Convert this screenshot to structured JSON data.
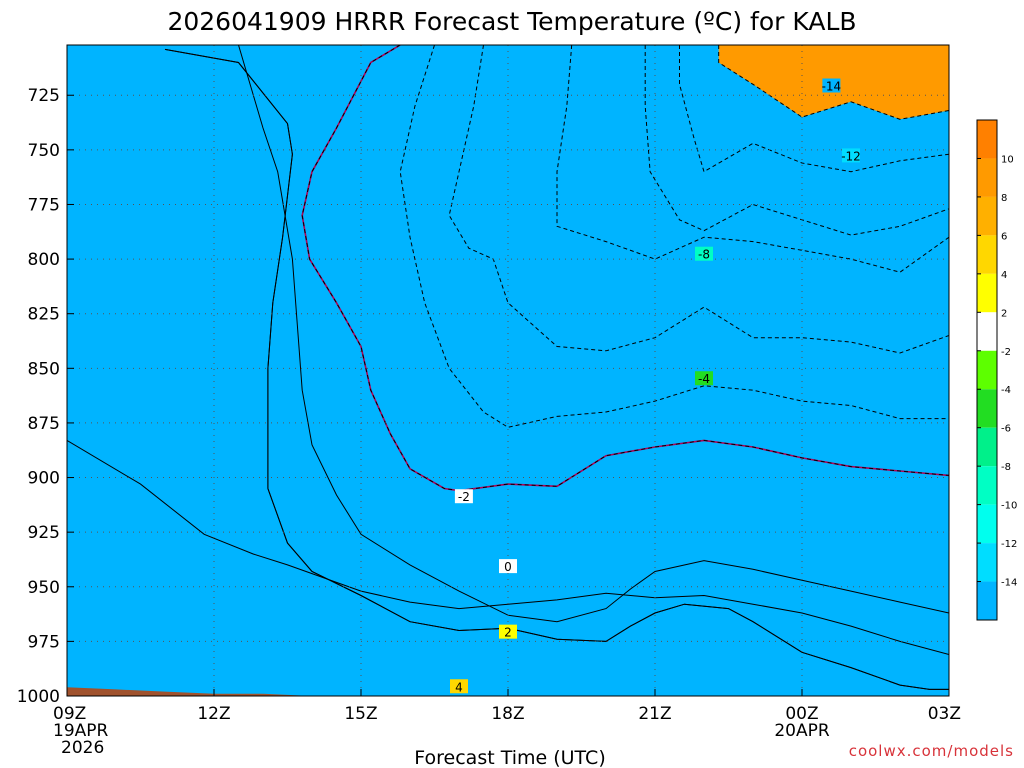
{
  "chart_data": {
    "type": "heatmap",
    "title": "2026041909 HRRR Forecast Temperature (ºC) for KALB",
    "xlabel": "Forecast Time (UTC)",
    "ylabel": "",
    "x_ticks": [
      {
        "hour": 0,
        "label": "09Z",
        "sub1": "19APR",
        "sub2": "2026"
      },
      {
        "hour": 3,
        "label": "12Z",
        "sub1": "",
        "sub2": ""
      },
      {
        "hour": 6,
        "label": "15Z",
        "sub1": "",
        "sub2": ""
      },
      {
        "hour": 9,
        "label": "18Z",
        "sub1": "",
        "sub2": ""
      },
      {
        "hour": 12,
        "label": "21Z",
        "sub1": "",
        "sub2": ""
      },
      {
        "hour": 15,
        "label": "00Z",
        "sub1": "20APR",
        "sub2": ""
      },
      {
        "hour": 18,
        "label": "03Z",
        "sub1": "",
        "sub2": ""
      }
    ],
    "y_ticks": [
      725,
      750,
      775,
      800,
      825,
      850,
      875,
      900,
      925,
      950,
      975,
      1000
    ],
    "xlim": [
      0,
      18
    ],
    "ylim": [
      1000,
      702
    ],
    "grid": true,
    "colorbar": {
      "levels": [
        -14,
        -12,
        -10,
        -8,
        -6,
        -4,
        -2,
        2,
        4,
        6,
        8,
        10
      ],
      "colors": [
        "#00b4ff",
        "#00ddff",
        "#00ffee",
        "#00ffc4",
        "#00f08a",
        "#22dd22",
        "#5dff00",
        "#ffffff",
        "#ffff00",
        "#ffd700",
        "#ffb000",
        "#ff9a00",
        "#ff8000"
      ]
    },
    "fill_bands": [
      {
        "lo": 4,
        "color": "#ffb000",
        "outline": [
          [
            0,
            1000
          ],
          [
            0,
            883
          ],
          [
            1.5,
            903
          ],
          [
            2.8,
            926
          ],
          [
            3.8,
            935
          ],
          [
            4.5,
            940
          ],
          [
            6,
            952
          ],
          [
            7,
            957
          ],
          [
            8,
            960
          ],
          [
            9,
            958
          ],
          [
            10,
            956
          ],
          [
            11,
            953
          ],
          [
            12,
            955
          ],
          [
            13,
            954
          ],
          [
            14,
            958
          ],
          [
            15,
            962
          ],
          [
            16,
            968
          ],
          [
            17,
            975
          ],
          [
            18,
            981
          ],
          [
            18,
            1000
          ]
        ]
      },
      {
        "lo": 4,
        "color": "#ffb000",
        "outline": [
          [
            0,
            1000
          ],
          [
            0,
            702
          ],
          [
            2,
            704
          ],
          [
            3.5,
            710
          ],
          [
            4.5,
            738
          ],
          [
            4.6,
            752
          ],
          [
            4.4,
            790
          ],
          [
            4.2,
            820
          ],
          [
            4.1,
            850
          ],
          [
            4.1,
            880
          ],
          [
            4.1,
            905
          ],
          [
            4.5,
            930
          ],
          [
            5,
            943
          ],
          [
            6,
            954
          ],
          [
            7,
            966
          ],
          [
            8,
            970
          ],
          [
            9,
            969
          ],
          [
            10,
            974
          ],
          [
            11,
            975
          ],
          [
            11.5,
            968
          ],
          [
            12,
            962
          ],
          [
            12.6,
            958
          ],
          [
            13.5,
            960
          ],
          [
            14,
            966
          ],
          [
            15,
            980
          ],
          [
            16,
            987
          ],
          [
            17,
            995
          ],
          [
            17.6,
            997
          ],
          [
            18,
            997
          ],
          [
            18,
            1000
          ]
        ]
      },
      {
        "lo": 2,
        "color": "#ffff00",
        "outline": [
          [
            0,
            1000
          ],
          [
            0,
            702
          ],
          [
            2,
            704
          ],
          [
            3.5,
            710
          ],
          [
            4.5,
            738
          ],
          [
            4.6,
            752
          ],
          [
            4.4,
            790
          ],
          [
            4.2,
            820
          ],
          [
            4.1,
            850
          ],
          [
            4.1,
            880
          ],
          [
            4.1,
            905
          ],
          [
            4.5,
            930
          ],
          [
            5,
            943
          ],
          [
            6,
            954
          ],
          [
            7,
            966
          ],
          [
            8,
            970
          ],
          [
            9,
            969
          ],
          [
            10,
            974
          ],
          [
            11,
            975
          ],
          [
            11.5,
            968
          ],
          [
            12,
            962
          ],
          [
            12.6,
            958
          ],
          [
            13.5,
            960
          ],
          [
            14,
            966
          ],
          [
            15,
            980
          ],
          [
            16,
            987
          ],
          [
            17,
            995
          ],
          [
            17.6,
            997
          ],
          [
            18,
            997
          ],
          [
            18,
            1000
          ]
        ]
      },
      {
        "lo": 2,
        "color": "#ffff00",
        "outline": [
          [
            0,
            1000
          ],
          [
            0,
            702
          ],
          [
            3.5,
            702
          ],
          [
            4,
            740
          ],
          [
            4.3,
            760
          ],
          [
            4.6,
            800
          ],
          [
            4.7,
            830
          ],
          [
            4.8,
            860
          ],
          [
            5,
            885
          ],
          [
            5.5,
            908
          ],
          [
            6,
            926
          ],
          [
            7,
            940
          ],
          [
            8,
            952
          ],
          [
            9,
            963
          ],
          [
            10,
            966
          ],
          [
            11,
            960
          ],
          [
            11.5,
            951
          ],
          [
            12,
            943
          ],
          [
            13,
            938
          ],
          [
            14,
            942
          ],
          [
            15,
            947
          ],
          [
            16,
            952
          ],
          [
            17,
            957
          ],
          [
            18,
            962
          ],
          [
            18,
            1000
          ]
        ]
      },
      {
        "lo": -2,
        "color": "#ffffff",
        "outline": [
          [
            0,
            1000
          ],
          [
            0,
            702
          ],
          [
            6.8,
            702
          ],
          [
            6.2,
            710
          ],
          [
            5.5,
            740
          ],
          [
            5,
            760
          ],
          [
            4.8,
            780
          ],
          [
            4.95,
            800
          ],
          [
            5.5,
            820
          ],
          [
            6,
            840
          ],
          [
            6.2,
            860
          ],
          [
            6.6,
            880
          ],
          [
            7,
            896
          ],
          [
            7.7,
            905
          ],
          [
            8,
            906
          ],
          [
            9,
            903
          ],
          [
            10,
            904
          ],
          [
            11,
            890
          ],
          [
            12,
            886
          ],
          [
            13,
            883
          ],
          [
            14,
            886
          ],
          [
            15,
            891
          ],
          [
            16,
            895
          ],
          [
            17,
            897
          ],
          [
            18,
            899
          ],
          [
            18,
            1000
          ]
        ]
      },
      {
        "lo": -4,
        "color": "#5dff00",
        "outline": [
          [
            0,
            1000
          ],
          [
            0,
            702
          ],
          [
            6.8,
            702
          ],
          [
            6.2,
            710
          ],
          [
            5.5,
            740
          ],
          [
            5,
            760
          ],
          [
            4.8,
            780
          ],
          [
            4.95,
            800
          ],
          [
            5.5,
            820
          ],
          [
            6,
            840
          ],
          [
            6.2,
            860
          ],
          [
            6.6,
            880
          ],
          [
            7,
            896
          ],
          [
            7.7,
            905
          ],
          [
            8,
            906
          ],
          [
            9,
            903
          ],
          [
            10,
            904
          ],
          [
            11,
            890
          ],
          [
            12,
            886
          ],
          [
            13,
            883
          ],
          [
            14,
            886
          ],
          [
            15,
            891
          ],
          [
            16,
            895
          ],
          [
            17,
            897
          ],
          [
            18,
            899
          ],
          [
            18,
            1000
          ]
        ]
      },
      {
        "lo": -4,
        "color": "#22dd22",
        "outline": [
          [
            0,
            1000
          ],
          [
            0,
            702
          ],
          [
            7.5,
            702
          ],
          [
            7.1,
            730
          ],
          [
            6.8,
            760
          ],
          [
            7,
            790
          ],
          [
            7.3,
            820
          ],
          [
            7.8,
            850
          ],
          [
            8.5,
            870
          ],
          [
            9,
            877
          ],
          [
            10,
            872
          ],
          [
            11,
            870
          ],
          [
            12,
            865
          ],
          [
            13,
            858
          ],
          [
            14,
            860
          ],
          [
            15,
            865
          ],
          [
            16,
            867
          ],
          [
            17,
            873
          ],
          [
            18,
            873
          ],
          [
            18,
            1000
          ]
        ]
      },
      {
        "lo": -6,
        "color": "#00f08a",
        "outline": [
          [
            0,
            1000
          ],
          [
            0,
            702
          ],
          [
            8.5,
            702
          ],
          [
            8.3,
            730
          ],
          [
            8,
            760
          ],
          [
            7.8,
            780
          ],
          [
            8.2,
            795
          ],
          [
            8.7,
            800
          ],
          [
            9,
            820
          ],
          [
            10,
            840
          ],
          [
            11,
            842
          ],
          [
            12,
            836
          ],
          [
            13,
            822
          ],
          [
            14,
            836
          ],
          [
            15,
            836
          ],
          [
            16,
            838
          ],
          [
            17,
            843
          ],
          [
            18,
            835
          ],
          [
            18,
            1000
          ]
        ]
      },
      {
        "lo": -8,
        "color": "#00ffc4",
        "outline": [
          [
            0,
            1000
          ],
          [
            0,
            702
          ],
          [
            10.3,
            702
          ],
          [
            10.2,
            730
          ],
          [
            10,
            760
          ],
          [
            10,
            785
          ],
          [
            11,
            792
          ],
          [
            12,
            800
          ],
          [
            13,
            790
          ],
          [
            14,
            792
          ],
          [
            15,
            796
          ],
          [
            16,
            800
          ],
          [
            17,
            806
          ],
          [
            18,
            790
          ],
          [
            18,
            1000
          ]
        ]
      },
      {
        "lo": -10,
        "color": "#00ffee",
        "outline": [
          [
            0,
            1000
          ],
          [
            0,
            702
          ],
          [
            11.8,
            702
          ],
          [
            11.8,
            730
          ],
          [
            11.9,
            760
          ],
          [
            12.5,
            782
          ],
          [
            13,
            787
          ],
          [
            14,
            775
          ],
          [
            15,
            782
          ],
          [
            16,
            789
          ],
          [
            17,
            785
          ],
          [
            18,
            777
          ],
          [
            18,
            1000
          ]
        ]
      },
      {
        "lo": -12,
        "color": "#00ddff",
        "outline": [
          [
            0,
            1000
          ],
          [
            0,
            702
          ],
          [
            12.5,
            702
          ],
          [
            12.5,
            720
          ],
          [
            12.8,
            745
          ],
          [
            13,
            760
          ],
          [
            14,
            747
          ],
          [
            15,
            756
          ],
          [
            16,
            760
          ],
          [
            17,
            755
          ],
          [
            18,
            752
          ],
          [
            18,
            1000
          ]
        ]
      },
      {
        "lo": -14,
        "color": "#00b4ff",
        "outline": [
          [
            0,
            1000
          ],
          [
            0,
            702
          ],
          [
            13.3,
            702
          ],
          [
            13.3,
            710
          ],
          [
            14,
            720
          ],
          [
            15,
            735
          ],
          [
            16,
            728
          ],
          [
            17,
            736
          ],
          [
            18,
            732
          ],
          [
            18,
            1000
          ]
        ]
      }
    ],
    "ground": {
      "color": "#a0522d",
      "top": [
        [
          0,
          996
        ],
        [
          1,
          997
        ],
        [
          2,
          998
        ],
        [
          3,
          999
        ],
        [
          4,
          999
        ],
        [
          5,
          1000
        ],
        [
          6,
          1000
        ],
        [
          7,
          1000
        ],
        [
          8,
          1000
        ],
        [
          9,
          1000
        ],
        [
          10,
          1000
        ],
        [
          11,
          1000
        ],
        [
          12,
          1000
        ],
        [
          13,
          1000
        ],
        [
          14,
          1001
        ],
        [
          15,
          1001
        ],
        [
          16,
          1002
        ],
        [
          17,
          1003
        ],
        [
          18,
          1003
        ]
      ]
    },
    "contour_labels": [
      {
        "text": "-14",
        "hour": 15.6,
        "p": 721,
        "color": "#00b4ff"
      },
      {
        "text": "-12",
        "hour": 16,
        "p": 753,
        "color": "#00ddff"
      },
      {
        "text": "-8",
        "hour": 13,
        "p": 798,
        "color": "#00ffc4"
      },
      {
        "text": "-4",
        "hour": 13,
        "p": 855,
        "color": "#22dd22"
      },
      {
        "text": "-2",
        "hour": 8.1,
        "p": 909,
        "color": "#ffffff"
      },
      {
        "text": "0",
        "hour": 9,
        "p": 941,
        "color": "#ffffff"
      },
      {
        "text": "2",
        "hour": 9,
        "p": 971,
        "color": "#ffff00"
      },
      {
        "text": "4",
        "hour": 8,
        "p": 996,
        "color": "#ffd700"
      }
    ],
    "credit": "coolwx.com/models"
  }
}
